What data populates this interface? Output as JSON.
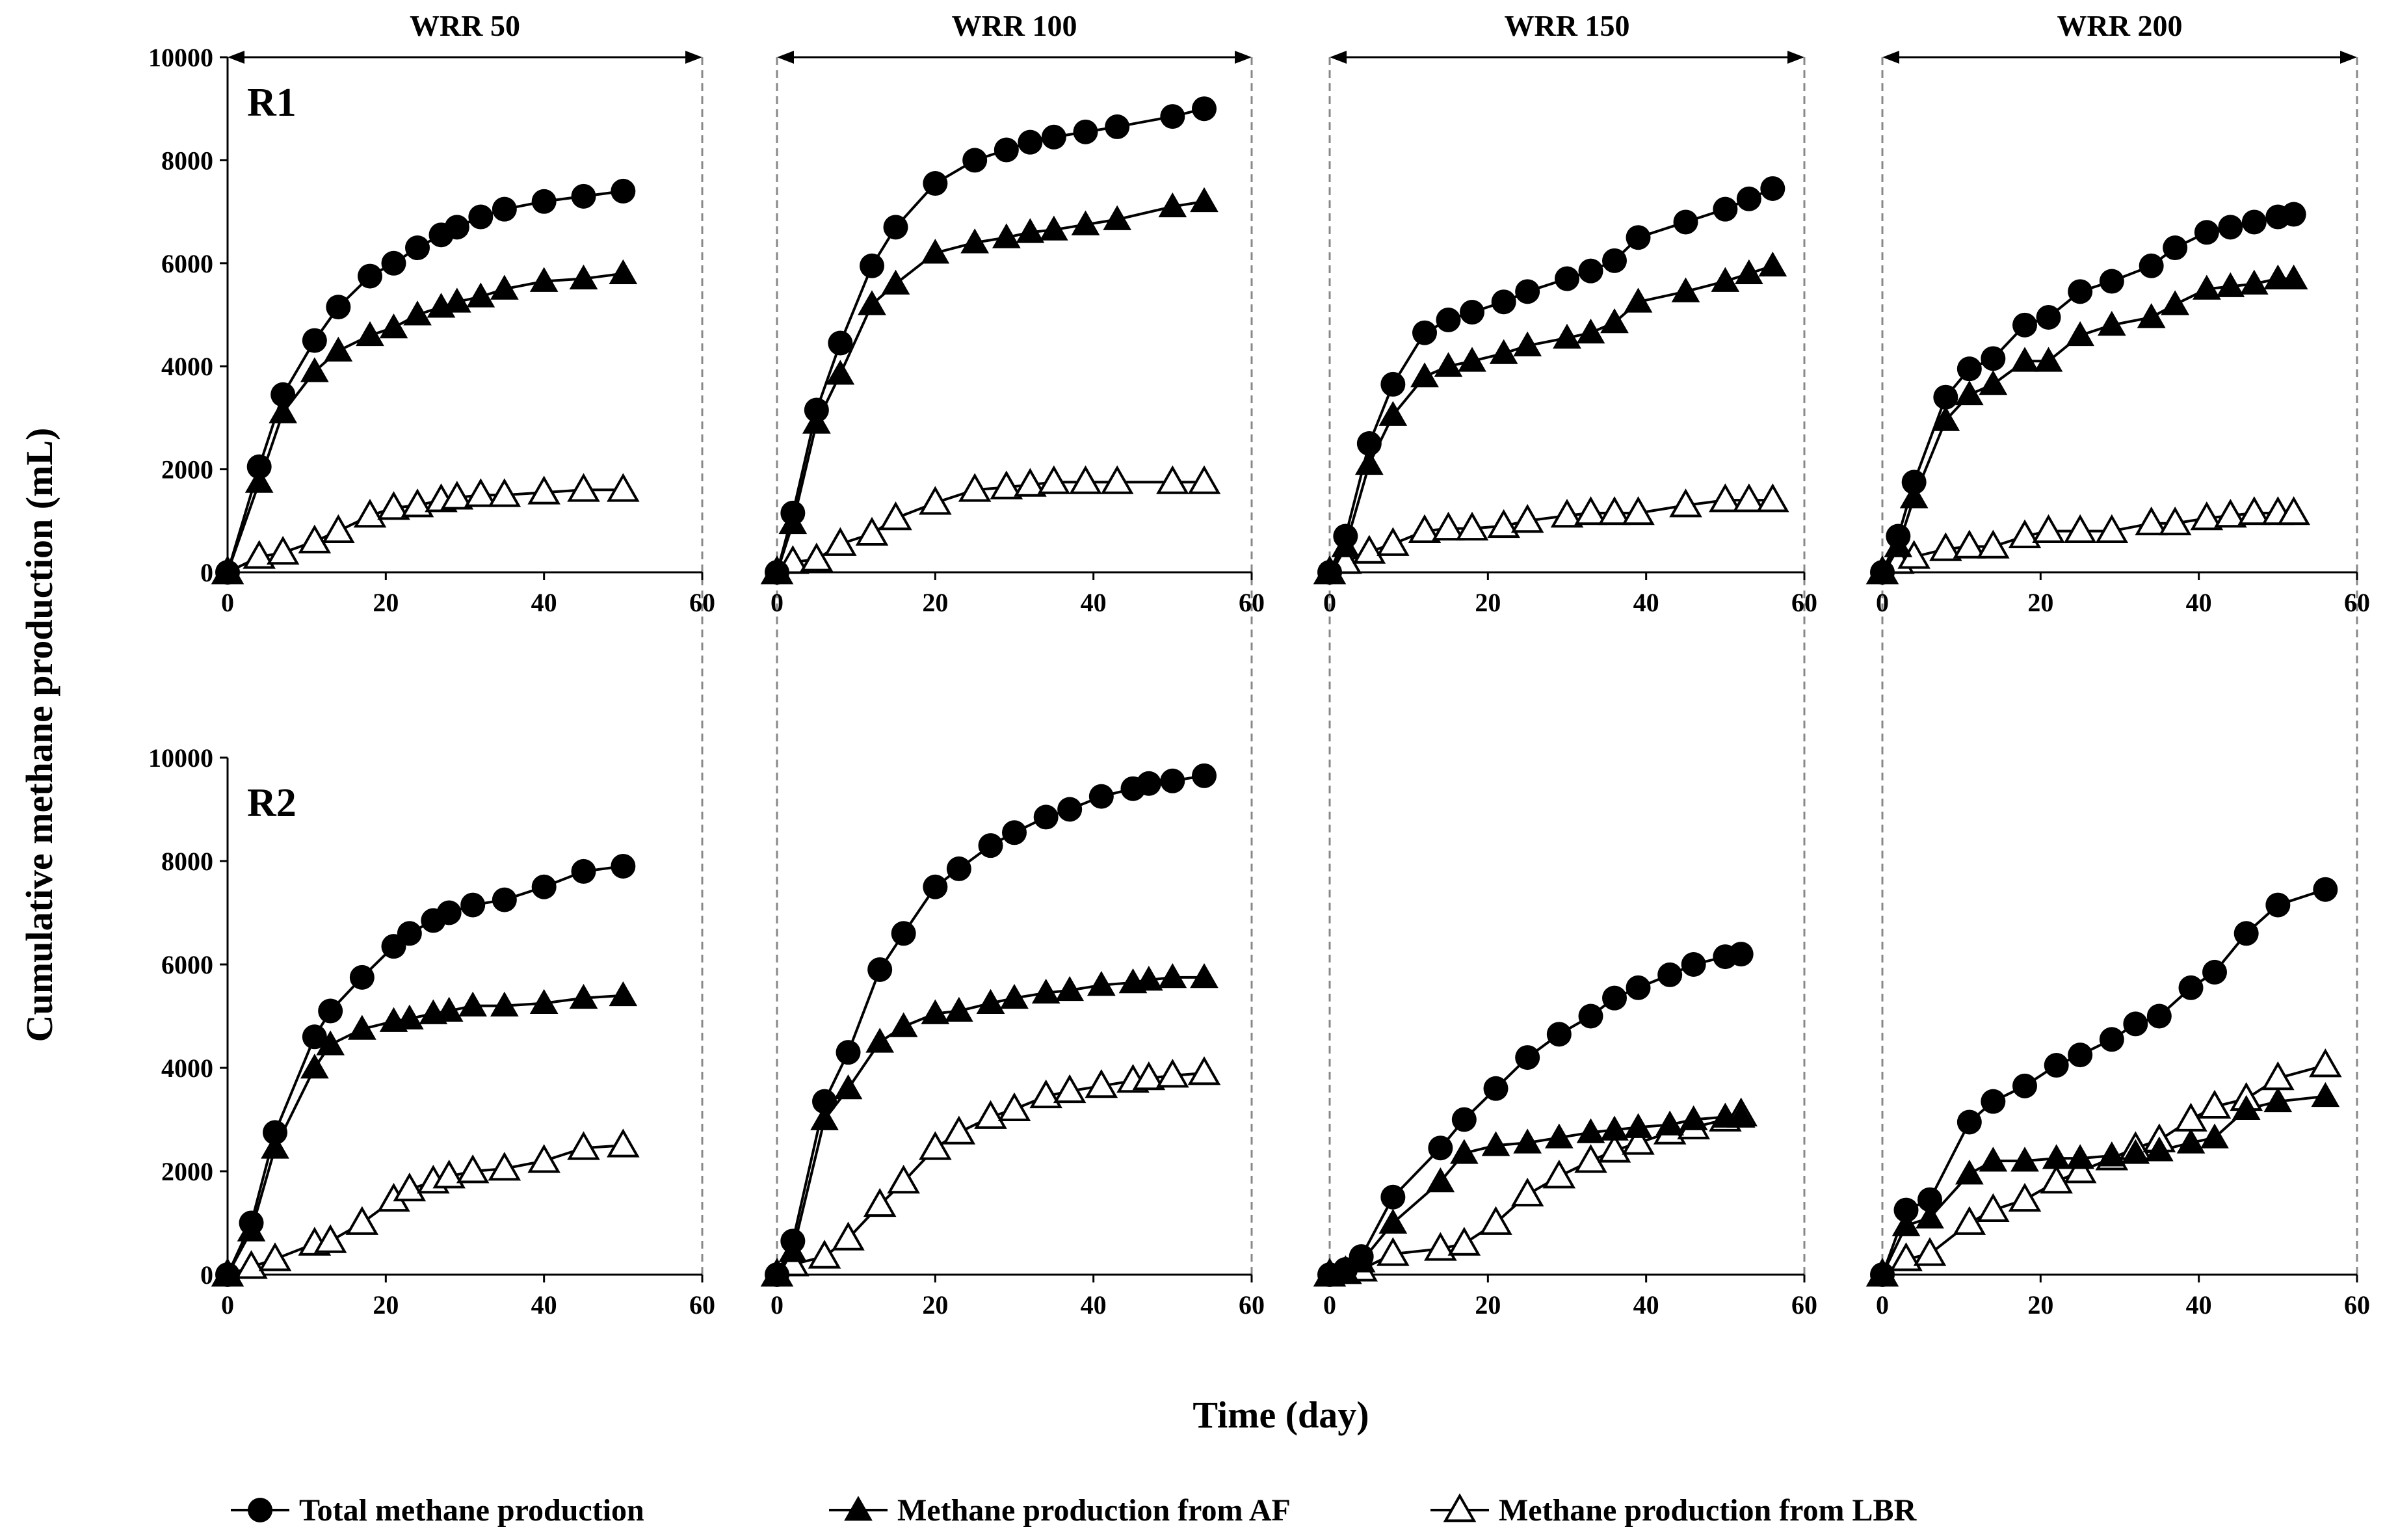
{
  "figure": {
    "ylabel": "Cumulative methane production  (mL)",
    "xlabel": "Time (day)",
    "column_headers": [
      "WRR 50",
      "WRR 100",
      "WRR 150",
      "WRR 200"
    ],
    "row_labels": [
      "R1",
      "R2"
    ],
    "legend": [
      "Total methane production",
      "Methane production from AF",
      "Methane production from LBR"
    ]
  },
  "chart_data": [
    {
      "type": "line",
      "reactor": "R1",
      "period": "WRR 50",
      "xlim": [
        0,
        60
      ],
      "ylim": [
        0,
        10000
      ],
      "xticks": [
        "0",
        "20",
        "40",
        "60"
      ],
      "yticks": [
        "0",
        "2000",
        "4000",
        "6000",
        "8000",
        "10000"
      ],
      "series": [
        {
          "name": "Total methane production",
          "marker": "filled-circle",
          "x": [
            0,
            4,
            7,
            11,
            14,
            18,
            21,
            24,
            27,
            29,
            32,
            35,
            40,
            45,
            50
          ],
          "y": [
            0,
            2050,
            3450,
            4500,
            5150,
            5750,
            6000,
            6300,
            6550,
            6700,
            6900,
            7050,
            7200,
            7300,
            7400
          ]
        },
        {
          "name": "Methane production from AF",
          "marker": "filled-triangle",
          "x": [
            0,
            4,
            7,
            11,
            14,
            18,
            21,
            24,
            27,
            29,
            32,
            35,
            40,
            45,
            50
          ],
          "y": [
            0,
            1750,
            3100,
            3900,
            4300,
            4600,
            4750,
            5000,
            5150,
            5250,
            5350,
            5500,
            5650,
            5700,
            5800
          ]
        },
        {
          "name": "Methane production from LBR",
          "marker": "open-triangle",
          "x": [
            0,
            4,
            7,
            11,
            14,
            18,
            21,
            24,
            27,
            29,
            32,
            35,
            40,
            45,
            50
          ],
          "y": [
            0,
            300,
            380,
            600,
            800,
            1100,
            1250,
            1300,
            1400,
            1450,
            1500,
            1500,
            1550,
            1600,
            1600
          ]
        }
      ]
    },
    {
      "type": "line",
      "reactor": "R1",
      "period": "WRR 100",
      "xlim": [
        0,
        60
      ],
      "ylim": [
        0,
        10000
      ],
      "xticks": [
        "0",
        "20",
        "40",
        "60"
      ],
      "yticks": [],
      "series": [
        {
          "name": "Total methane production",
          "marker": "filled-circle",
          "x": [
            0,
            2,
            5,
            8,
            12,
            15,
            20,
            25,
            29,
            32,
            35,
            39,
            43,
            50,
            54
          ],
          "y": [
            0,
            1150,
            3150,
            4450,
            5950,
            6700,
            7550,
            8000,
            8200,
            8350,
            8450,
            8550,
            8650,
            8850,
            9000
          ]
        },
        {
          "name": "Methane production from AF",
          "marker": "filled-triangle",
          "x": [
            0,
            2,
            5,
            8,
            12,
            15,
            20,
            25,
            29,
            32,
            35,
            39,
            43,
            50,
            54
          ],
          "y": [
            0,
            950,
            2900,
            3850,
            5200,
            5600,
            6200,
            6400,
            6500,
            6600,
            6650,
            6750,
            6850,
            7100,
            7200
          ]
        },
        {
          "name": "Methane production from LBR",
          "marker": "open-triangle",
          "x": [
            0,
            2,
            5,
            8,
            12,
            15,
            20,
            25,
            29,
            32,
            35,
            39,
            43,
            50,
            54
          ],
          "y": [
            0,
            200,
            250,
            550,
            750,
            1050,
            1350,
            1600,
            1650,
            1700,
            1750,
            1750,
            1750,
            1750,
            1750
          ]
        }
      ]
    },
    {
      "type": "line",
      "reactor": "R1",
      "period": "WRR 150",
      "xlim": [
        0,
        60
      ],
      "ylim": [
        0,
        10000
      ],
      "xticks": [
        "0",
        "20",
        "40",
        "60"
      ],
      "yticks": [],
      "series": [
        {
          "name": "Total methane production",
          "marker": "filled-circle",
          "x": [
            0,
            2,
            5,
            8,
            12,
            15,
            18,
            22,
            25,
            30,
            33,
            36,
            39,
            45,
            50,
            53,
            56
          ],
          "y": [
            0,
            700,
            2500,
            3650,
            4650,
            4900,
            5050,
            5250,
            5450,
            5700,
            5850,
            6050,
            6500,
            6800,
            7050,
            7250,
            7450
          ]
        },
        {
          "name": "Methane production from AF",
          "marker": "filled-triangle",
          "x": [
            0,
            2,
            5,
            8,
            12,
            15,
            18,
            22,
            25,
            30,
            33,
            36,
            39,
            45,
            50,
            53,
            56
          ],
          "y": [
            0,
            500,
            2100,
            3050,
            3800,
            4000,
            4100,
            4250,
            4400,
            4550,
            4650,
            4850,
            5250,
            5450,
            5650,
            5800,
            5950
          ]
        },
        {
          "name": "Methane production from LBR",
          "marker": "open-triangle",
          "x": [
            0,
            2,
            5,
            8,
            12,
            15,
            18,
            22,
            25,
            30,
            33,
            36,
            39,
            45,
            50,
            53,
            56
          ],
          "y": [
            0,
            200,
            400,
            550,
            800,
            850,
            850,
            900,
            1000,
            1100,
            1150,
            1150,
            1150,
            1300,
            1400,
            1400,
            1400
          ]
        }
      ]
    },
    {
      "type": "line",
      "reactor": "R1",
      "period": "WRR 200",
      "xlim": [
        0,
        60
      ],
      "ylim": [
        0,
        10000
      ],
      "xticks": [
        "0",
        "20",
        "40",
        "60"
      ],
      "yticks": [],
      "series": [
        {
          "name": "Total methane production",
          "marker": "filled-circle",
          "x": [
            0,
            2,
            4,
            8,
            11,
            14,
            18,
            21,
            25,
            29,
            34,
            37,
            41,
            44,
            47,
            50,
            52
          ],
          "y": [
            0,
            700,
            1750,
            3400,
            3950,
            4150,
            4800,
            4950,
            5450,
            5650,
            5950,
            6300,
            6600,
            6700,
            6800,
            6900,
            6950
          ]
        },
        {
          "name": "Methane production from AF",
          "marker": "filled-triangle",
          "x": [
            0,
            2,
            4,
            8,
            11,
            14,
            18,
            21,
            25,
            29,
            34,
            37,
            41,
            44,
            47,
            50,
            52
          ],
          "y": [
            0,
            500,
            1450,
            2950,
            3450,
            3650,
            4100,
            4100,
            4600,
            4800,
            4950,
            5200,
            5500,
            5550,
            5600,
            5700,
            5700
          ]
        },
        {
          "name": "Methane production from LBR",
          "marker": "open-triangle",
          "x": [
            0,
            2,
            4,
            8,
            11,
            14,
            18,
            21,
            25,
            29,
            34,
            37,
            41,
            44,
            47,
            50,
            52
          ],
          "y": [
            0,
            200,
            300,
            450,
            500,
            500,
            700,
            800,
            800,
            800,
            950,
            950,
            1050,
            1100,
            1150,
            1150,
            1150
          ]
        }
      ]
    },
    {
      "type": "line",
      "reactor": "R2",
      "period": "WRR 50",
      "xlim": [
        0,
        60
      ],
      "ylim": [
        0,
        10000
      ],
      "xticks": [
        "0",
        "20",
        "40",
        "60"
      ],
      "yticks": [
        "0",
        "2000",
        "4000",
        "6000",
        "8000",
        "10000"
      ],
      "series": [
        {
          "name": "Total methane production",
          "marker": "filled-circle",
          "x": [
            0,
            3,
            6,
            11,
            13,
            17,
            21,
            23,
            26,
            28,
            31,
            35,
            40,
            45,
            50
          ],
          "y": [
            0,
            1000,
            2750,
            4600,
            5100,
            5750,
            6350,
            6600,
            6850,
            7000,
            7150,
            7250,
            7500,
            7800,
            7900
          ]
        },
        {
          "name": "Methane production from AF",
          "marker": "filled-triangle",
          "x": [
            0,
            3,
            6,
            11,
            13,
            17,
            21,
            23,
            26,
            28,
            31,
            35,
            40,
            45,
            50
          ],
          "y": [
            0,
            850,
            2450,
            4000,
            4450,
            4750,
            4900,
            4950,
            5050,
            5100,
            5200,
            5200,
            5250,
            5350,
            5400
          ]
        },
        {
          "name": "Methane production from LBR",
          "marker": "open-triangle",
          "x": [
            0,
            3,
            6,
            11,
            13,
            17,
            21,
            23,
            26,
            28,
            31,
            35,
            40,
            45,
            50
          ],
          "y": [
            0,
            150,
            300,
            600,
            650,
            1000,
            1450,
            1650,
            1800,
            1900,
            2000,
            2050,
            2200,
            2450,
            2500
          ]
        }
      ]
    },
    {
      "type": "line",
      "reactor": "R2",
      "period": "WRR 100",
      "xlim": [
        0,
        60
      ],
      "ylim": [
        0,
        10000
      ],
      "xticks": [
        "0",
        "20",
        "40",
        "60"
      ],
      "yticks": [],
      "series": [
        {
          "name": "Total methane production",
          "marker": "filled-circle",
          "x": [
            0,
            2,
            6,
            9,
            13,
            16,
            20,
            23,
            27,
            30,
            34,
            37,
            41,
            45,
            47,
            50,
            54
          ],
          "y": [
            0,
            650,
            3350,
            4300,
            5900,
            6600,
            7500,
            7850,
            8300,
            8550,
            8850,
            9000,
            9250,
            9400,
            9500,
            9550,
            9650
          ]
        },
        {
          "name": "Methane production from AF",
          "marker": "filled-triangle",
          "x": [
            0,
            2,
            6,
            9,
            13,
            16,
            20,
            23,
            27,
            30,
            34,
            37,
            41,
            45,
            47,
            50,
            54
          ],
          "y": [
            0,
            450,
            3000,
            3600,
            4500,
            4800,
            5050,
            5100,
            5250,
            5350,
            5450,
            5500,
            5600,
            5650,
            5700,
            5750,
            5750
          ]
        },
        {
          "name": "Methane production from LBR",
          "marker": "open-triangle",
          "x": [
            0,
            2,
            6,
            9,
            13,
            16,
            20,
            23,
            27,
            30,
            34,
            37,
            41,
            45,
            47,
            50,
            54
          ],
          "y": [
            0,
            200,
            350,
            700,
            1350,
            1800,
            2450,
            2750,
            3050,
            3200,
            3450,
            3550,
            3650,
            3750,
            3800,
            3850,
            3900
          ]
        }
      ]
    },
    {
      "type": "line",
      "reactor": "R2",
      "period": "WRR 150",
      "xlim": [
        0,
        60
      ],
      "ylim": [
        0,
        10000
      ],
      "xticks": [
        "0",
        "20",
        "40",
        "60"
      ],
      "yticks": [],
      "series": [
        {
          "name": "Total methane production",
          "marker": "filled-circle",
          "x": [
            0,
            2,
            4,
            8,
            14,
            17,
            21,
            25,
            29,
            33,
            36,
            39,
            43,
            46,
            50,
            52
          ],
          "y": [
            0,
            100,
            350,
            1500,
            2450,
            3000,
            3600,
            4200,
            4650,
            5000,
            5350,
            5550,
            5800,
            6000,
            6150,
            6200
          ]
        },
        {
          "name": "Methane production from AF",
          "marker": "filled-triangle",
          "x": [
            0,
            2,
            4,
            8,
            14,
            17,
            21,
            25,
            29,
            33,
            36,
            39,
            43,
            46,
            50,
            52
          ],
          "y": [
            0,
            50,
            250,
            1000,
            1800,
            2350,
            2500,
            2550,
            2650,
            2750,
            2800,
            2850,
            2900,
            3000,
            3050,
            3050
          ]
        },
        {
          "name": "Methane production from LBR",
          "marker": "open-triangle",
          "x": [
            0,
            2,
            4,
            8,
            14,
            17,
            21,
            25,
            29,
            33,
            36,
            39,
            43,
            46,
            50,
            52
          ],
          "y": [
            0,
            50,
            100,
            400,
            500,
            600,
            1000,
            1550,
            1900,
            2200,
            2400,
            2550,
            2750,
            2850,
            3000,
            3100
          ]
        }
      ]
    },
    {
      "type": "line",
      "reactor": "R2",
      "period": "WRR 200",
      "xlim": [
        0,
        60
      ],
      "ylim": [
        0,
        10000
      ],
      "xticks": [
        "0",
        "20",
        "40",
        "60"
      ],
      "yticks": [],
      "series": [
        {
          "name": "Total methane production",
          "marker": "filled-circle",
          "x": [
            0,
            3,
            6,
            11,
            14,
            18,
            22,
            25,
            29,
            32,
            35,
            39,
            42,
            46,
            50,
            56
          ],
          "y": [
            0,
            1250,
            1450,
            2950,
            3350,
            3650,
            4050,
            4250,
            4550,
            4850,
            5000,
            5550,
            5850,
            6600,
            7150,
            7450
          ]
        },
        {
          "name": "Methane production from AF",
          "marker": "filled-triangle",
          "x": [
            0,
            3,
            6,
            11,
            14,
            18,
            22,
            25,
            29,
            32,
            35,
            39,
            42,
            46,
            50,
            56
          ],
          "y": [
            0,
            950,
            1100,
            1950,
            2200,
            2200,
            2250,
            2250,
            2300,
            2350,
            2400,
            2550,
            2650,
            3200,
            3350,
            3450
          ]
        },
        {
          "name": "Methane production from LBR",
          "marker": "open-triangle",
          "x": [
            0,
            3,
            6,
            11,
            14,
            18,
            22,
            25,
            29,
            32,
            35,
            39,
            42,
            46,
            50,
            56
          ],
          "y": [
            0,
            300,
            400,
            1000,
            1250,
            1450,
            1800,
            2000,
            2250,
            2450,
            2600,
            3000,
            3250,
            3400,
            3800,
            4050
          ]
        }
      ]
    }
  ]
}
